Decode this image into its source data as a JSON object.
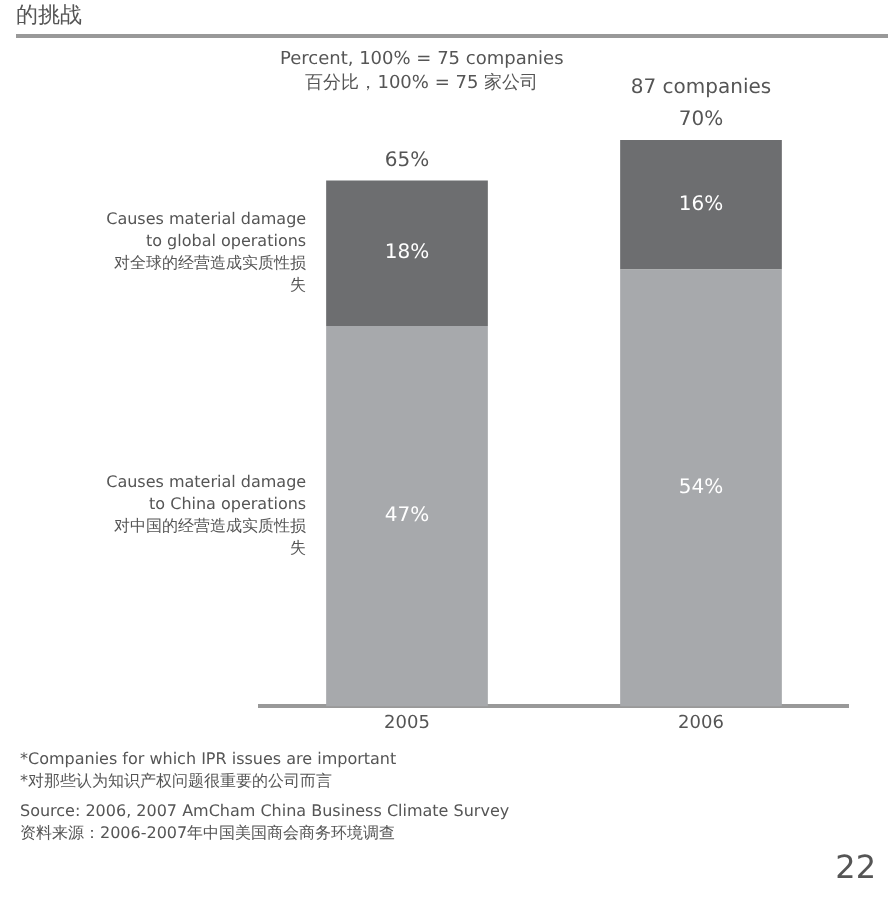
{
  "chart_data": {
    "type": "bar",
    "title": "的挑战",
    "subtitle": "Percent, 100% = 75 companies\n百分比，100% = 75 家公司",
    "categories": [
      "2005",
      "2006"
    ],
    "stacked": true,
    "legend": false,
    "grid": false,
    "tick_labels": "x",
    "series": [
      {
        "name": "Causes material damage to China operations\n对中国的经营造成实质性损失",
        "color": "#a7a9ac",
        "values": [
          47,
          54
        ],
        "value_labels": [
          "47%",
          "54%"
        ]
      },
      {
        "name": "Causes material damage to global operations\n对全球的经营造成实质性损失",
        "color": "#6d6e70",
        "values": [
          18,
          16
        ],
        "value_labels": [
          "18%",
          "16%"
        ]
      }
    ],
    "totals": [
      "65%",
      "70%"
    ],
    "annotations": [
      "87 companies",
      "*Companies for which IPR issues are important\n*对那些认为知识产权问题很重要的公司而言",
      "Source: 2006, 2007 AmCham China Business Climate Survey\n资料来源：2006-2007年中国美国商会商务环境调查",
      "22"
    ]
  }
}
